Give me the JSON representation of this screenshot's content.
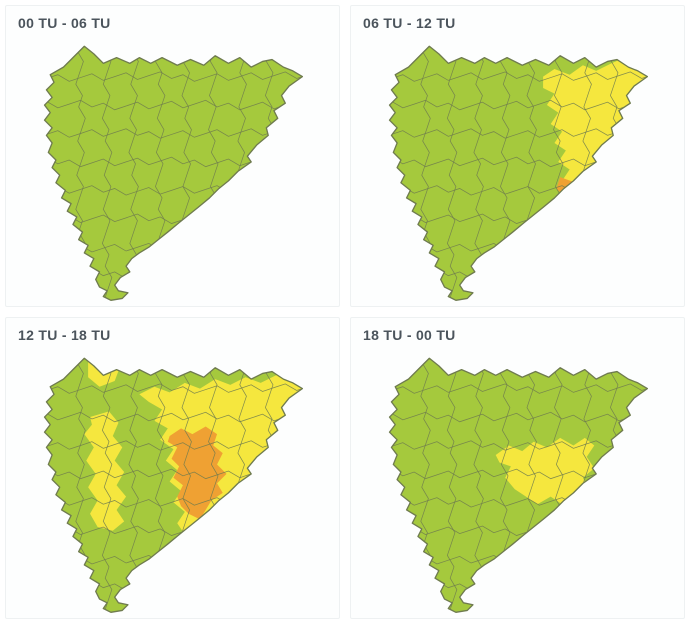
{
  "colors": {
    "green": "#a5c93d",
    "yellow": "#f5e73e",
    "orange": "#efa133",
    "stroke": "#6f7b4f",
    "title_text": "#4b545c",
    "panel_bg": "#fdfefe",
    "page_bg": "#ffffff"
  },
  "panels": [
    {
      "label": "00 TU - 06 TU",
      "patches": []
    },
    {
      "label": "06 TU - 12 TU",
      "patches": [
        {
          "region": "northeast",
          "level": "yellow"
        },
        {
          "region": "coast_sliver",
          "level": "orange"
        }
      ]
    },
    {
      "label": "12 TU - 18 TU",
      "patches": [
        {
          "region": "aran",
          "level": "yellow"
        },
        {
          "region": "west_column",
          "level": "yellow"
        },
        {
          "region": "center_east",
          "level": "yellow"
        },
        {
          "region": "central_orange",
          "level": "orange"
        }
      ]
    },
    {
      "label": "18 TU - 00 TU",
      "patches": [
        {
          "region": "central_small",
          "level": "yellow"
        }
      ]
    }
  ]
}
